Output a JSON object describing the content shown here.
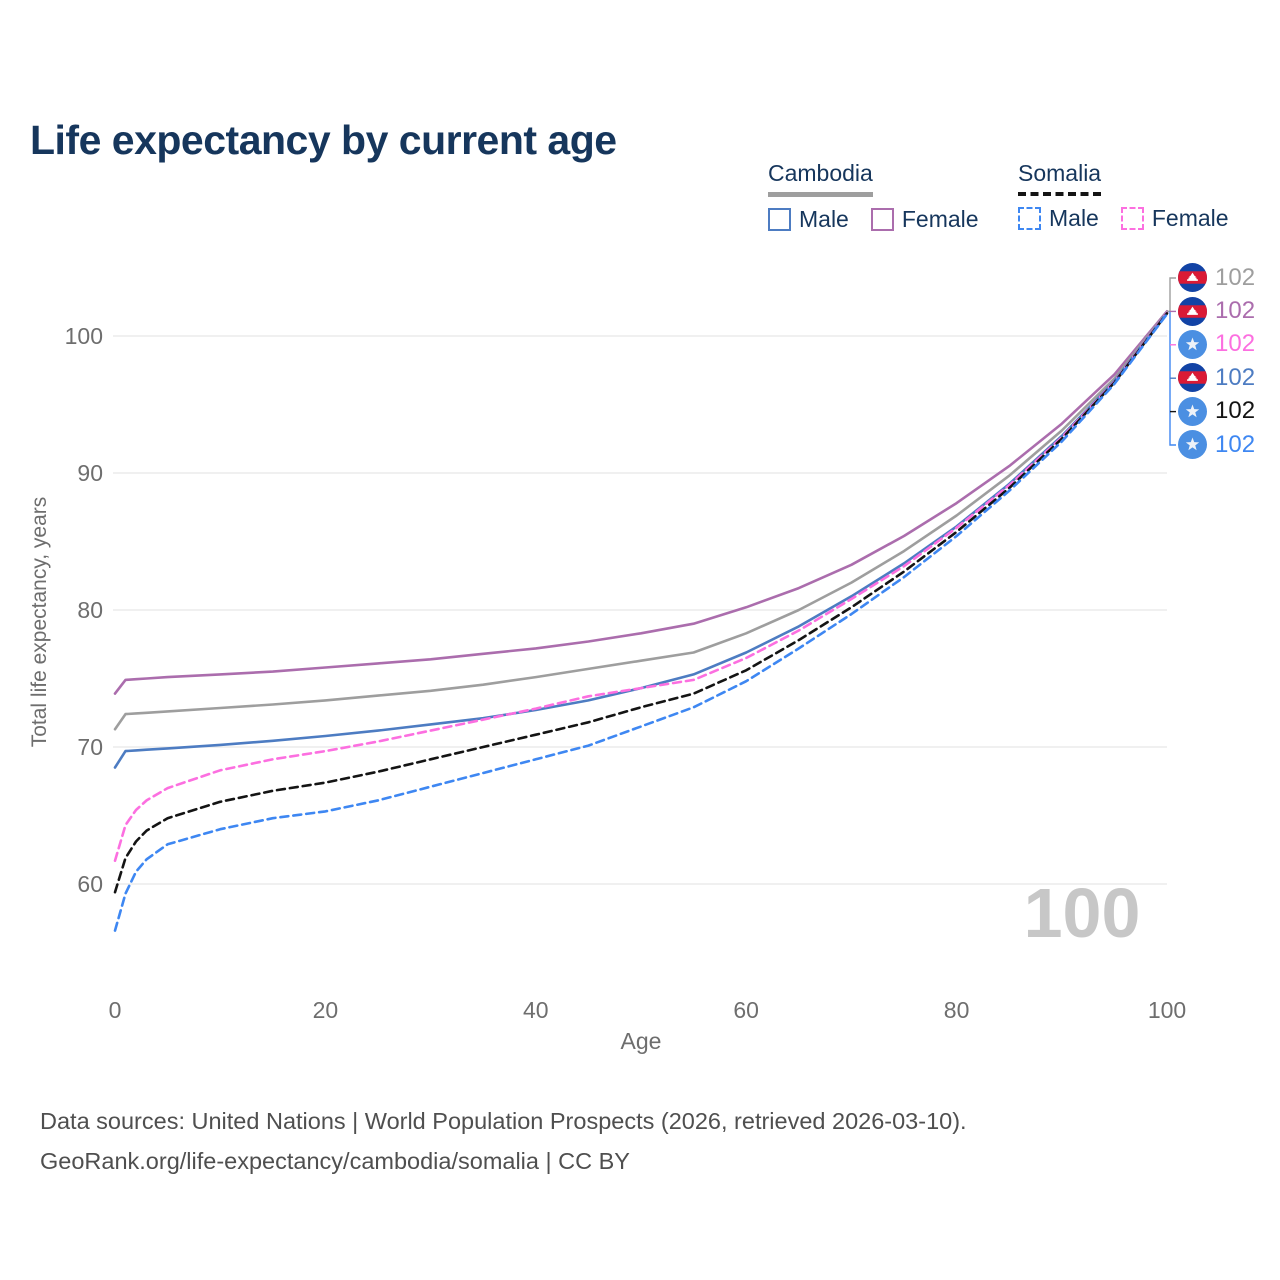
{
  "header": {
    "title": "Life expectancy by current age"
  },
  "legend": {
    "groups": [
      {
        "country": "Cambodia",
        "style": "solid",
        "items": [
          {
            "label": "Male",
            "color": "#4d7cc2",
            "dash": false
          },
          {
            "label": "Female",
            "color": "#ab6dad",
            "dash": false
          }
        ]
      },
      {
        "country": "Somalia",
        "style": "dashed",
        "items": [
          {
            "label": "Male",
            "color": "#3e87f2",
            "dash": true
          },
          {
            "label": "Female",
            "color": "#fc6fe0",
            "dash": true
          }
        ]
      }
    ]
  },
  "chart_data": {
    "type": "line",
    "title": "Life expectancy by current age",
    "xlabel": "Age",
    "ylabel": "Total life expectancy, years",
    "x_ticks": [
      0,
      20,
      40,
      60,
      80,
      100
    ],
    "y_ticks": [
      60,
      70,
      80,
      90,
      100
    ],
    "xlim": [
      0,
      100
    ],
    "ylim": [
      56,
      104
    ],
    "grid": "horizontal",
    "watermark": "100",
    "ages": [
      0,
      1,
      2,
      3,
      5,
      10,
      15,
      20,
      25,
      30,
      35,
      40,
      45,
      50,
      55,
      60,
      65,
      70,
      75,
      80,
      85,
      90,
      95,
      100
    ],
    "series": [
      {
        "id": "cambodia-female",
        "name": "Cambodia Female",
        "country": "Cambodia",
        "sex": "Female",
        "color": "#ab6dad",
        "dashed": false,
        "values": [
          73.9,
          74.9,
          74.95,
          75.0,
          75.1,
          75.3,
          75.5,
          75.8,
          76.1,
          76.4,
          76.8,
          77.2,
          77.7,
          78.3,
          79.0,
          80.2,
          81.6,
          83.3,
          85.4,
          87.8,
          90.5,
          93.6,
          97.2,
          101.8
        ]
      },
      {
        "id": "cambodia-both",
        "name": "Cambodia",
        "country": "Cambodia",
        "sex": "Both",
        "color": "#9e9e9e",
        "dashed": false,
        "values": [
          71.3,
          72.4,
          72.45,
          72.5,
          72.6,
          72.85,
          73.1,
          73.4,
          73.75,
          74.1,
          74.55,
          75.1,
          75.7,
          76.3,
          76.9,
          78.3,
          80.0,
          82.0,
          84.3,
          86.9,
          89.8,
          93.1,
          96.9,
          101.75
        ]
      },
      {
        "id": "cambodia-male",
        "name": "Cambodia Male",
        "country": "Cambodia",
        "sex": "Male",
        "color": "#4d7cc2",
        "dashed": false,
        "values": [
          68.5,
          69.7,
          69.75,
          69.8,
          69.9,
          70.15,
          70.45,
          70.8,
          71.2,
          71.65,
          72.1,
          72.7,
          73.4,
          74.3,
          75.3,
          76.9,
          78.8,
          81.0,
          83.4,
          86.1,
          89.2,
          92.7,
          96.7,
          101.7
        ]
      },
      {
        "id": "somalia-female",
        "name": "Somalia Female",
        "country": "Somalia",
        "sex": "Female",
        "color": "#fc6fe0",
        "dashed": true,
        "values": [
          61.7,
          64.3,
          65.4,
          66.1,
          67.0,
          68.3,
          69.1,
          69.7,
          70.4,
          71.2,
          72.0,
          72.8,
          73.7,
          74.3,
          74.9,
          76.5,
          78.5,
          80.8,
          83.2,
          86.0,
          89.1,
          92.6,
          96.65,
          101.7
        ]
      },
      {
        "id": "somalia-both",
        "name": "Somalia",
        "country": "Somalia",
        "sex": "Both",
        "color": "#141414",
        "dashed": true,
        "values": [
          59.4,
          61.9,
          63.1,
          63.9,
          64.8,
          66.0,
          66.8,
          67.4,
          68.2,
          69.1,
          70.0,
          70.9,
          71.8,
          72.9,
          73.9,
          75.6,
          77.8,
          80.2,
          82.8,
          85.7,
          88.9,
          92.5,
          96.6,
          101.65
        ]
      },
      {
        "id": "somalia-male",
        "name": "Somalia Male",
        "country": "Somalia",
        "sex": "Male",
        "color": "#3e87f2",
        "dashed": true,
        "values": [
          56.6,
          59.3,
          60.9,
          61.8,
          62.9,
          64.0,
          64.8,
          65.3,
          66.1,
          67.1,
          68.1,
          69.1,
          70.1,
          71.5,
          72.9,
          74.8,
          77.2,
          79.7,
          82.4,
          85.4,
          88.7,
          92.3,
          96.5,
          101.6
        ]
      }
    ],
    "end_labels": [
      {
        "value": "102",
        "flag": "cambodia",
        "color": "#9e9e9e",
        "series": "Cambodia"
      },
      {
        "value": "102",
        "flag": "cambodia",
        "color": "#ab6dad",
        "series": "Cambodia Female"
      },
      {
        "value": "102",
        "flag": "somalia",
        "color": "#fc6fe0",
        "series": "Somalia Female"
      },
      {
        "value": "102",
        "flag": "cambodia",
        "color": "#4d7cc2",
        "series": "Cambodia Male"
      },
      {
        "value": "102",
        "flag": "somalia",
        "color": "#141414",
        "series": "Somalia"
      },
      {
        "value": "102",
        "flag": "somalia",
        "color": "#3e87f2",
        "series": "Somalia Male"
      }
    ]
  },
  "footer": {
    "line1": "Data sources: United Nations | World Population Prospects (2026, retrieved 2026-03-10).",
    "line2": "GeoRank.org/life-expectancy/cambodia/somalia | CC BY"
  }
}
